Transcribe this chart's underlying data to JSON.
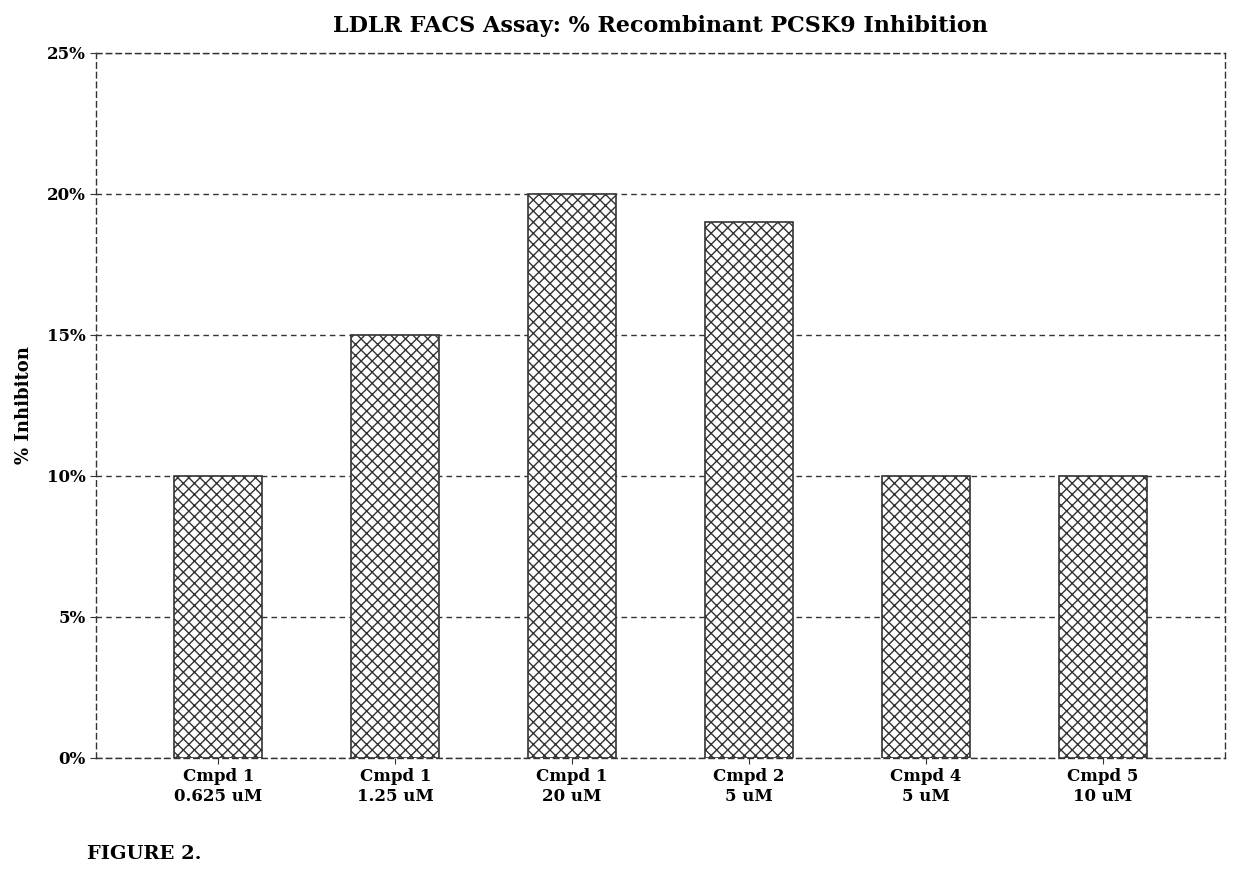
{
  "title": "LDLR FACS Assay: % Recombinant PCSK9 Inhibition",
  "ylabel": "% Inhibiton",
  "categories": [
    "Cmpd 1\n0.625 uM",
    "Cmpd 1\n1.25 uM",
    "Cmpd 1\n20 uM",
    "Cmpd 2\n5 uM",
    "Cmpd 4\n5 uM",
    "Cmpd 5\n10 uM"
  ],
  "values": [
    0.1,
    0.15,
    0.2,
    0.19,
    0.1,
    0.1
  ],
  "ylim": [
    0,
    0.25
  ],
  "yticks": [
    0.0,
    0.05,
    0.1,
    0.15,
    0.2,
    0.25
  ],
  "ytick_labels": [
    "0%",
    "5%",
    "10%",
    "15%",
    "20%",
    "25%"
  ],
  "bar_color": "#ffffff",
  "bar_edgecolor": "#333333",
  "hatch": "xxx",
  "background_color": "#ffffff",
  "plot_background": "#ffffff",
  "grid_color": "#333333",
  "title_fontsize": 16,
  "label_fontsize": 13,
  "tick_fontsize": 12,
  "figure_caption": "FIGURE 2.",
  "bar_width": 0.5
}
